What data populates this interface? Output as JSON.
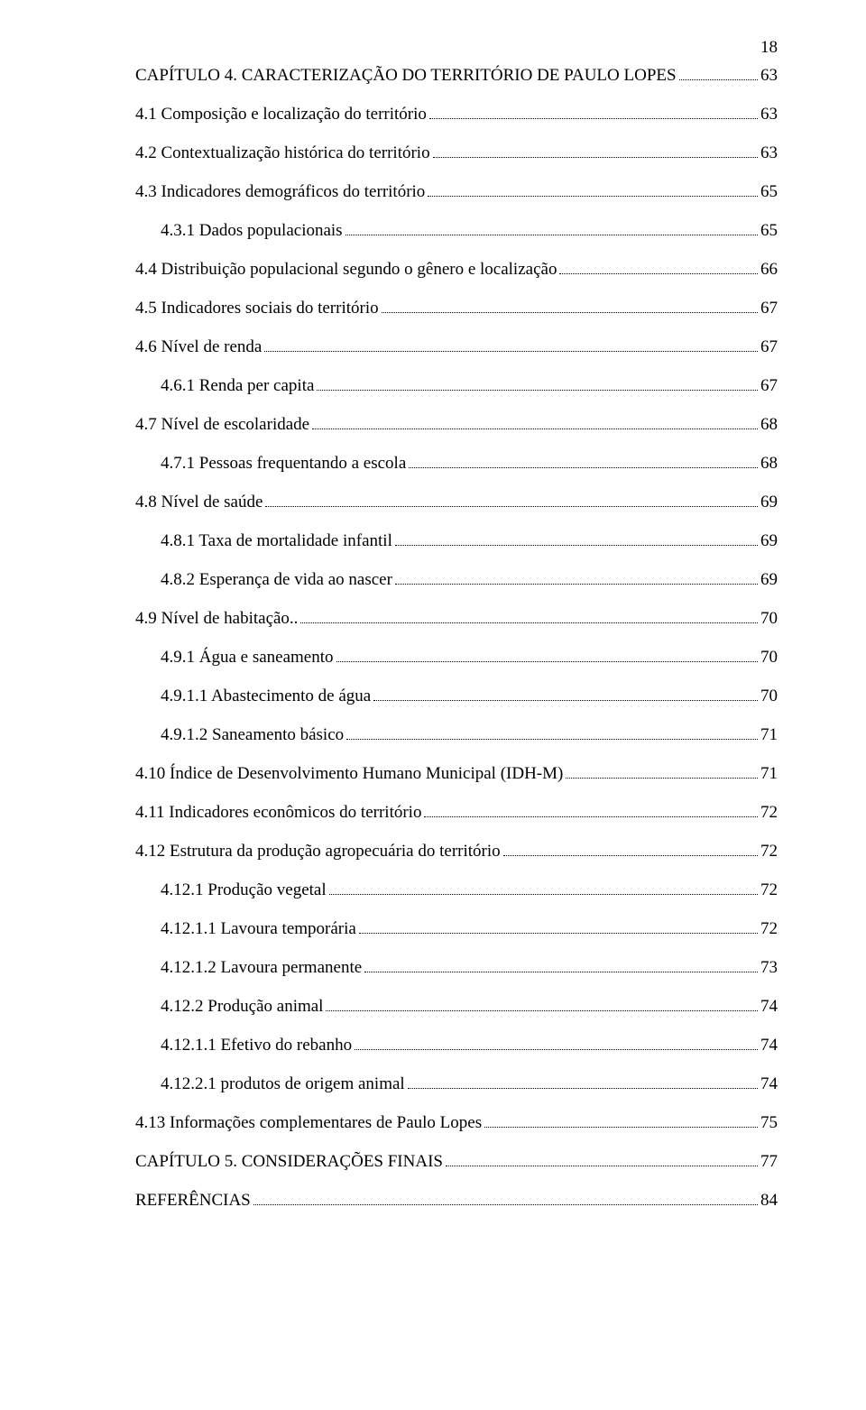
{
  "page_number": "18",
  "font": {
    "family": "Times New Roman",
    "size_pt": 19,
    "color": "#000000"
  },
  "background_color": "#ffffff",
  "toc": [
    {
      "indent": 0,
      "text": "CAPÍTULO 4. CARACTERIZAÇÃO DO TERRITÓRIO DE PAULO LOPES",
      "page": "63"
    },
    {
      "indent": 0,
      "text": "4.1 Composição e localização do território",
      "page": "63"
    },
    {
      "indent": 0,
      "text": "4.2 Contextualização histórica do território",
      "page": "63"
    },
    {
      "indent": 0,
      "text": "4.3 Indicadores demográficos do território",
      "page": "65"
    },
    {
      "indent": 1,
      "text": "4.3.1 Dados populacionais",
      "page": "65"
    },
    {
      "indent": 0,
      "text": "4.4 Distribuição populacional segundo o gênero e localização",
      "page": "66"
    },
    {
      "indent": 0,
      "text": "4.5 Indicadores sociais do território",
      "page": "67"
    },
    {
      "indent": 0,
      "text": "4.6 Nível de renda",
      "page": "67"
    },
    {
      "indent": 1,
      "text": "4.6.1 Renda per capita",
      "page": "67"
    },
    {
      "indent": 0,
      "text": "4.7 Nível de escolaridade",
      "page": "68"
    },
    {
      "indent": 1,
      "text": "4.7.1 Pessoas frequentando a escola",
      "page": "68"
    },
    {
      "indent": 0,
      "text": "4.8 Nível de saúde",
      "page": "69"
    },
    {
      "indent": 1,
      "text": "4.8.1 Taxa de mortalidade infantil",
      "page": "69"
    },
    {
      "indent": 1,
      "text": "4.8.2 Esperança de vida ao nascer",
      "page": "69"
    },
    {
      "indent": 0,
      "text": "4.9 Nível de habitação..",
      "page": "70"
    },
    {
      "indent": 1,
      "text": "4.9.1 Água e saneamento",
      "page": "70"
    },
    {
      "indent": 2,
      "text": "4.9.1.1 Abastecimento de água",
      "page": "70"
    },
    {
      "indent": 2,
      "text": "4.9.1.2 Saneamento básico",
      "page": "71"
    },
    {
      "indent": 0,
      "text": "4.10 Índice de Desenvolvimento Humano Municipal (IDH-M)",
      "page": "71"
    },
    {
      "indent": 0,
      "text": "4.11 Indicadores econômicos do território",
      "page": "72"
    },
    {
      "indent": 0,
      "text": "4.12 Estrutura da produção agropecuária do território",
      "page": "72"
    },
    {
      "indent": 1,
      "text": "4.12.1 Produção vegetal",
      "page": "72"
    },
    {
      "indent": 2,
      "text": "4.12.1.1 Lavoura temporária",
      "page": "72"
    },
    {
      "indent": 2,
      "text": "4.12.1.2 Lavoura permanente",
      "page": "73"
    },
    {
      "indent": 1,
      "text": "4.12.2 Produção animal",
      "page": "74"
    },
    {
      "indent": 2,
      "text": "4.12.1.1 Efetivo do rebanho",
      "page": "74"
    },
    {
      "indent": 2,
      "text": "4.12.2.1 produtos de origem animal",
      "page": "74"
    },
    {
      "indent": 0,
      "text": "4.13 Informações complementares de Paulo Lopes",
      "page": "75"
    },
    {
      "indent": 0,
      "text": "CAPÍTULO 5. CONSIDERAÇÕES FINAIS",
      "page": "77"
    },
    {
      "indent": 0,
      "text": "REFERÊNCIAS",
      "page": "84"
    }
  ]
}
